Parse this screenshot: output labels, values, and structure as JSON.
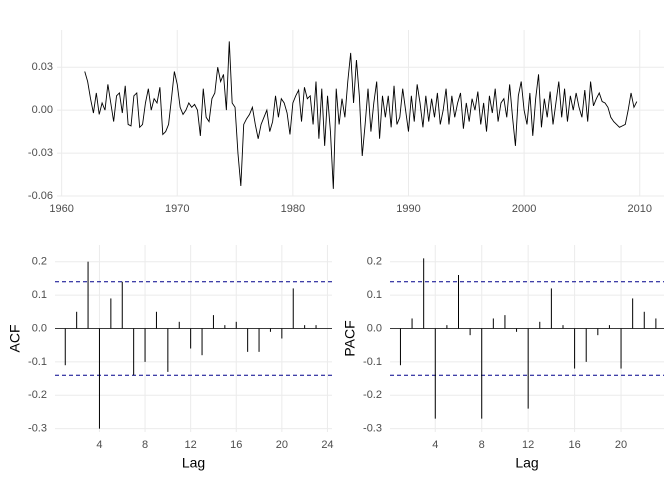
{
  "chart_data": [
    {
      "type": "line",
      "color": "#000000",
      "grid": true,
      "x": [
        1962,
        1962.25,
        1962.5,
        1962.75,
        1963,
        1963.25,
        1963.5,
        1963.75,
        1964,
        1964.25,
        1964.5,
        1964.75,
        1965,
        1965.25,
        1965.5,
        1965.75,
        1966,
        1966.25,
        1966.5,
        1966.75,
        1967,
        1967.25,
        1967.5,
        1967.75,
        1968,
        1968.25,
        1968.5,
        1968.75,
        1969,
        1969.25,
        1969.5,
        1969.75,
        1970,
        1970.25,
        1970.5,
        1970.75,
        1971,
        1971.25,
        1971.5,
        1971.75,
        1972,
        1972.25,
        1972.5,
        1972.75,
        1973,
        1973.25,
        1973.5,
        1973.75,
        1974,
        1974.25,
        1974.5,
        1974.75,
        1975,
        1975.25,
        1975.5,
        1975.75,
        1976,
        1976.25,
        1976.5,
        1976.75,
        1977,
        1977.25,
        1977.5,
        1977.75,
        1978,
        1978.25,
        1978.5,
        1978.75,
        1979,
        1979.25,
        1979.5,
        1979.75,
        1980,
        1980.25,
        1980.5,
        1980.75,
        1981,
        1981.25,
        1981.5,
        1981.75,
        1982,
        1982.25,
        1982.5,
        1982.75,
        1983,
        1983.25,
        1983.5,
        1983.75,
        1984,
        1984.25,
        1984.5,
        1984.75,
        1985,
        1985.25,
        1985.5,
        1985.75,
        1986,
        1986.25,
        1986.5,
        1986.75,
        1987,
        1987.25,
        1987.5,
        1987.75,
        1988,
        1988.25,
        1988.5,
        1988.75,
        1989,
        1989.25,
        1989.5,
        1989.75,
        1990,
        1990.25,
        1990.5,
        1990.75,
        1991,
        1991.25,
        1991.5,
        1991.75,
        1992,
        1992.25,
        1992.5,
        1992.75,
        1993,
        1993.25,
        1993.5,
        1993.75,
        1994,
        1994.25,
        1994.5,
        1994.75,
        1995,
        1995.25,
        1995.5,
        1995.75,
        1996,
        1996.25,
        1996.5,
        1996.75,
        1997,
        1997.25,
        1997.5,
        1997.75,
        1998,
        1998.25,
        1998.5,
        1998.75,
        1999,
        1999.25,
        1999.5,
        1999.75,
        2000,
        2000.25,
        2000.5,
        2000.75,
        2001,
        2001.25,
        2001.5,
        2001.75,
        2002,
        2002.25,
        2002.5,
        2002.75,
        2003,
        2003.25,
        2003.5,
        2003.75,
        2004,
        2004.25,
        2004.5,
        2004.75,
        2005,
        2005.25,
        2005.5,
        2005.75,
        2006,
        2006.25,
        2006.5,
        2006.75,
        2007,
        2007.25,
        2007.5,
        2007.75,
        2008,
        2008.25,
        2008.5,
        2008.75,
        2009,
        2009.25,
        2009.5,
        2009.75
      ],
      "values": [
        0.027,
        0.02,
        0.008,
        -0.002,
        0.012,
        -0.003,
        0.005,
        0.0,
        0.018,
        0.005,
        -0.008,
        0.01,
        0.012,
        -0.002,
        0.017,
        -0.01,
        -0.011,
        0.01,
        0.012,
        -0.012,
        -0.01,
        0.005,
        0.015,
        0.0,
        0.008,
        0.005,
        0.016,
        -0.017,
        -0.015,
        -0.01,
        0.008,
        0.027,
        0.018,
        0.002,
        -0.003,
        0.0,
        0.005,
        0.002,
        0.004,
        0.0,
        -0.018,
        0.015,
        -0.005,
        -0.008,
        0.008,
        0.012,
        0.03,
        0.02,
        0.025,
        0.0,
        0.048,
        0.005,
        0.002,
        -0.03,
        -0.053,
        -0.01,
        -0.006,
        -0.003,
        0.002,
        -0.01,
        -0.02,
        -0.01,
        -0.005,
        0.0,
        -0.015,
        -0.008,
        0.01,
        -0.005,
        0.008,
        0.005,
        -0.002,
        -0.017,
        0.005,
        0.01,
        0.014,
        -0.008,
        0.016,
        0.008,
        0.01,
        -0.01,
        0.02,
        -0.02,
        0.015,
        -0.025,
        0.01,
        -0.015,
        -0.055,
        0.015,
        -0.01,
        0.008,
        -0.005,
        0.02,
        0.04,
        0.005,
        0.035,
        0.01,
        -0.032,
        -0.01,
        0.015,
        -0.015,
        0.005,
        0.02,
        -0.02,
        0.01,
        -0.005,
        0.01,
        -0.012,
        0.017,
        -0.01,
        -0.005,
        0.015,
        0.0,
        -0.015,
        0.01,
        -0.008,
        0.018,
        0.005,
        -0.012,
        0.01,
        -0.008,
        0.008,
        -0.005,
        0.012,
        -0.01,
        0.0,
        0.015,
        -0.01,
        0.01,
        -0.005,
        0.005,
        0.012,
        -0.013,
        0.005,
        -0.008,
        0.008,
        0.0,
        0.013,
        -0.01,
        0.005,
        -0.015,
        0.01,
        -0.002,
        0.015,
        -0.008,
        0.005,
        0.008,
        -0.005,
        0.018,
        -0.005,
        -0.025,
        0.01,
        0.02,
        0.0,
        -0.01,
        0.012,
        -0.018,
        0.008,
        0.025,
        -0.012,
        0.008,
        -0.005,
        0.013,
        -0.01,
        0.005,
        0.02,
        -0.005,
        0.015,
        -0.008,
        0.01,
        0.0,
        0.012,
        0.002,
        -0.005,
        0.014,
        -0.008,
        0.02,
        0.003,
        0.008,
        0.012,
        0.006,
        0.005,
        0.002,
        -0.005,
        -0.008,
        -0.01,
        -0.012,
        -0.011,
        -0.01,
        0.0,
        0.012,
        0.002,
        0.006
      ],
      "xlim": [
        1959.6,
        2012.1
      ],
      "xticks": [
        1960,
        1970,
        1980,
        1990,
        2000,
        2010
      ],
      "ylim": [
        -0.06,
        0.056
      ],
      "yticks": [
        {
          "value": -0.06,
          "label": "-0.06"
        },
        {
          "value": -0.03,
          "label": "-0.03"
        },
        {
          "value": 0,
          "label": "0.00"
        },
        {
          "value": 0.03,
          "label": "0.03"
        }
      ]
    },
    {
      "type": "bar",
      "color": "#000000",
      "grid": true,
      "x_label": "Lag",
      "y_label": "ACF",
      "x": [
        1,
        2,
        3,
        4,
        5,
        6,
        7,
        8,
        9,
        10,
        11,
        12,
        13,
        14,
        15,
        16,
        17,
        18,
        19,
        20,
        21,
        22,
        23
      ],
      "values": [
        -0.11,
        0.05,
        0.2,
        -0.3,
        0.09,
        0.14,
        -0.14,
        -0.1,
        0.05,
        -0.13,
        0.02,
        -0.06,
        -0.08,
        0.04,
        0.01,
        0.02,
        -0.07,
        -0.07,
        -0.01,
        -0.03,
        0.12,
        0.01,
        0.01
      ],
      "ci": [
        -0.14,
        0.14
      ],
      "ci_color": "#00008b",
      "xlim": [
        0.1,
        24.4
      ],
      "xticks": [
        4,
        8,
        12,
        16,
        20,
        24
      ],
      "ylim": [
        -0.31,
        0.25
      ],
      "yticks": [
        -0.3,
        -0.2,
        -0.1,
        {
          "value": 0,
          "label": "0.0"
        },
        0.1,
        0.2
      ]
    },
    {
      "type": "bar",
      "color": "#000000",
      "grid": true,
      "x_label": "Lag",
      "y_label": "PACF",
      "x": [
        1,
        2,
        3,
        4,
        5,
        6,
        7,
        8,
        9,
        10,
        11,
        12,
        13,
        14,
        15,
        16,
        17,
        18,
        19,
        20,
        21,
        22,
        23
      ],
      "values": [
        -0.11,
        0.03,
        0.21,
        -0.27,
        0.01,
        0.16,
        -0.02,
        -0.27,
        0.03,
        0.04,
        -0.01,
        -0.24,
        0.02,
        0.12,
        0.01,
        -0.12,
        -0.1,
        -0.02,
        0.01,
        -0.12,
        0.09,
        0.05,
        0.03
      ],
      "ci": [
        -0.14,
        0.14
      ],
      "ci_color": "#00008b",
      "xlim": [
        0.1,
        23.7
      ],
      "xticks": [
        4,
        8,
        12,
        16,
        20
      ],
      "ylim": [
        -0.31,
        0.25
      ],
      "yticks": [
        -0.3,
        -0.2,
        -0.1,
        {
          "value": 0,
          "label": "0.0"
        },
        0.1,
        0.2
      ]
    }
  ]
}
